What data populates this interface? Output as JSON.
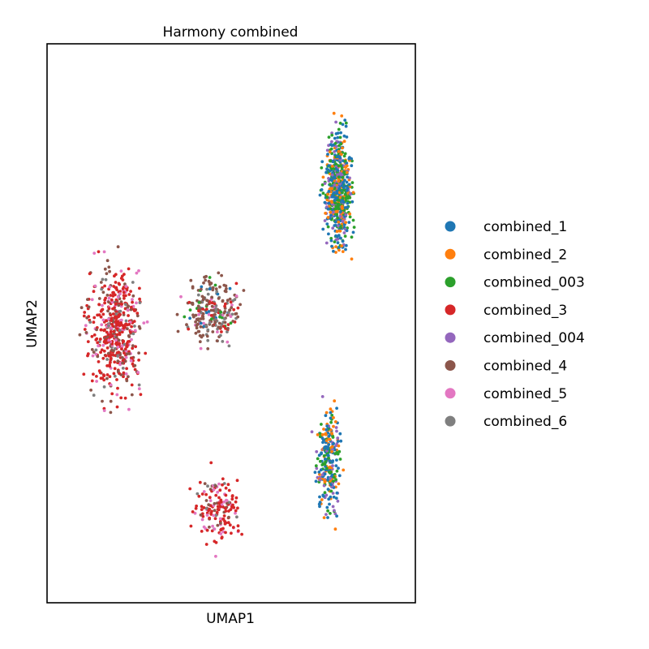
{
  "chart_data": {
    "type": "scatter",
    "title": "Harmony combined",
    "xlabel": "UMAP1",
    "ylabel": "UMAP2",
    "xticks": false,
    "yticks": false,
    "grid": false,
    "legend": {
      "placement": "right, outside plot",
      "entries": [
        {
          "label": "combined_1",
          "color": "#1f77b4"
        },
        {
          "label": "combined_2",
          "color": "#ff7f0e"
        },
        {
          "label": "combined_003",
          "color": "#2ca02c"
        },
        {
          "label": "combined_3",
          "color": "#d62728"
        },
        {
          "label": "combined_004",
          "color": "#9467bd"
        },
        {
          "label": "combined_4",
          "color": "#8c564b"
        },
        {
          "label": "combined_5",
          "color": "#e377c2"
        },
        {
          "label": "combined_6",
          "color": "#7f7f7f"
        }
      ]
    },
    "clusters": [
      {
        "name": "upper-right",
        "x": [
          0.72,
          0.86
        ],
        "y": [
          0.53,
          0.95
        ],
        "mix": {
          "combined_1": 0.3,
          "combined_2": 0.22,
          "combined_003": 0.3,
          "combined_004": 0.18
        }
      },
      {
        "name": "left",
        "x": [
          0.04,
          0.33
        ],
        "y": [
          0.26,
          0.72
        ],
        "mix": {
          "combined_3": 0.55,
          "combined_4": 0.2,
          "combined_5": 0.17,
          "combined_6": 0.08
        }
      },
      {
        "name": "center-bridge",
        "x": [
          0.3,
          0.6
        ],
        "y": [
          0.4,
          0.65
        ],
        "mix": {
          "combined_4": 0.45,
          "combined_6": 0.25,
          "combined_3": 0.12,
          "combined_1": 0.06,
          "combined_003": 0.06,
          "combined_5": 0.06
        }
      },
      {
        "name": "bottom-tail",
        "x": [
          0.33,
          0.6
        ],
        "y": [
          0.05,
          0.28
        ],
        "mix": {
          "combined_3": 0.6,
          "combined_5": 0.2,
          "combined_4": 0.15,
          "combined_6": 0.05
        }
      },
      {
        "name": "bottom-right",
        "x": [
          0.7,
          0.83
        ],
        "y": [
          0.06,
          0.45
        ],
        "mix": {
          "combined_1": 0.35,
          "combined_2": 0.25,
          "combined_003": 0.22,
          "combined_004": 0.18
        }
      }
    ]
  }
}
